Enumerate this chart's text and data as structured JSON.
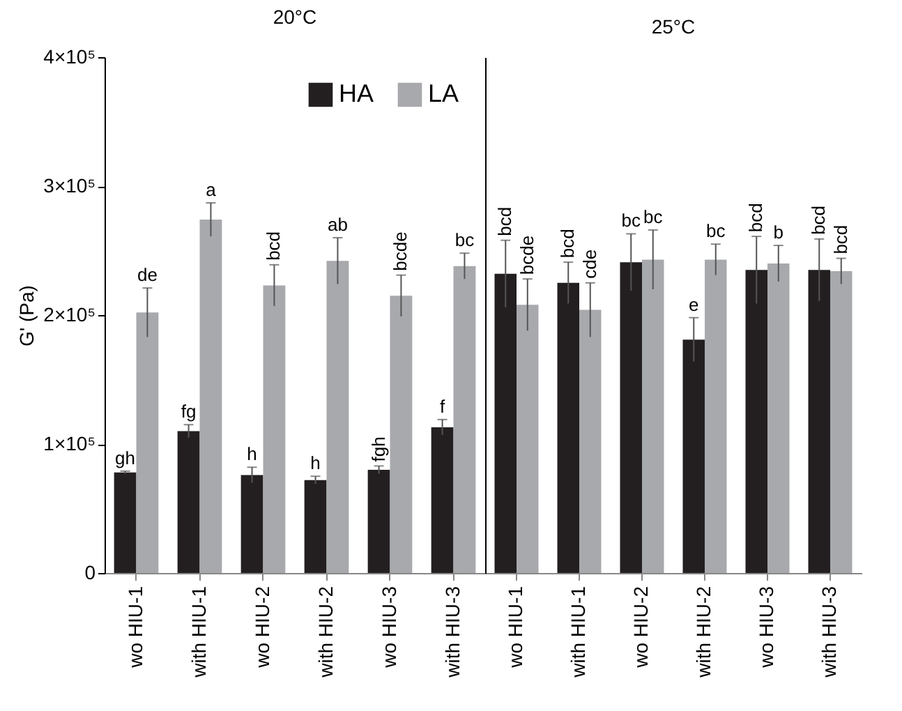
{
  "chart_data": [
    {
      "type": "bar",
      "title": "20°C",
      "ylabel": "G' (Pa)",
      "categories": [
        "wo HIU-1",
        "with HIU-1",
        "wo HIU-2",
        "with HIU-2",
        "wo HIU-3",
        "with HIU-3"
      ],
      "series": [
        {
          "name": "HA",
          "color": "#231f20",
          "values": [
            78000,
            110000,
            76000,
            72000,
            80000,
            113000
          ],
          "errors": [
            1000,
            5000,
            6000,
            3000,
            3000,
            6000
          ]
        },
        {
          "name": "LA",
          "color": "#a7a9ac",
          "values": [
            202000,
            274000,
            223000,
            242000,
            215000,
            238000
          ],
          "errors": [
            19000,
            13000,
            16000,
            18000,
            16000,
            10000
          ]
        }
      ],
      "ylim": [
        0,
        400000
      ],
      "yticks": [
        0,
        {
          "value": 100000,
          "label": "1×10⁵"
        },
        {
          "value": 200000,
          "label": "2×10⁵"
        },
        {
          "value": 300000,
          "label": "3×10⁵"
        },
        {
          "value": 400000,
          "label": "4×10⁵"
        }
      ],
      "legend": "top right",
      "annotations": [
        {
          "text": "gh",
          "x": "wo HIU-1",
          "y": 78000
        },
        {
          "text": "fg",
          "x": "with HIU-1",
          "y": 110000
        },
        {
          "text": "h",
          "x": "wo HIU-2",
          "y": 76000
        },
        {
          "text": "h",
          "x": "with HIU-2",
          "y": 72000
        },
        {
          "text": "fgh",
          "x": "wo HIU-3",
          "y": 80000
        },
        {
          "text": "f",
          "x": "with HIU-3",
          "y": 113000
        },
        {
          "text": "de",
          "x": "wo HIU-1",
          "y": 202000
        },
        {
          "text": "a",
          "x": "with HIU-1",
          "y": 274000
        },
        {
          "text": "bcd",
          "x": "wo HIU-2",
          "y": 223000
        },
        {
          "text": "ab",
          "x": "with HIU-2",
          "y": 242000
        },
        {
          "text": "bcde",
          "x": "wo HIU-3",
          "y": 215000
        },
        {
          "text": "bc",
          "x": "with HIU-3",
          "y": 238000
        }
      ]
    },
    {
      "type": "bar",
      "title": "25°C",
      "categories": [
        "wo HIU-1",
        "with HIU-1",
        "wo HIU-2",
        "with HIU-2",
        "wo HIU-3",
        "with HIU-3"
      ],
      "series": [
        {
          "color": "#231f20",
          "values": [
            232000,
            225000,
            241000,
            181000,
            235000,
            235000
          ],
          "errors": [
            26000,
            16000,
            22000,
            17000,
            26000,
            24000
          ]
        },
        {
          "color": "#a7a9ac",
          "values": [
            208000,
            204000,
            243000,
            243000,
            240000,
            234000
          ],
          "errors": [
            20000,
            21000,
            23000,
            12000,
            14000,
            10000
          ]
        }
      ],
      "ylim": [
        0,
        400000
      ],
      "tick_labels": "x",
      "annotations": [
        {
          "text": "bcd",
          "x": "wo HIU-1",
          "y": 232000
        },
        {
          "text": "bcd",
          "x": "with HIU-1",
          "y": 225000
        },
        {
          "text": "bc",
          "x": "wo HIU-2",
          "y": 241000
        },
        {
          "text": "e",
          "x": "with HIU-2",
          "y": 181000
        },
        {
          "text": "bcd",
          "x": "wo HIU-3",
          "y": 235000
        },
        {
          "text": "bcd",
          "x": "with HIU-3",
          "y": 235000
        },
        {
          "text": "bcde",
          "x": "wo HIU-1",
          "y": 208000
        },
        {
          "text": "cde",
          "x": "with HIU-1",
          "y": 204000
        },
        {
          "text": "bc",
          "x": "wo HIU-2",
          "y": 243000
        },
        {
          "text": "bc",
          "x": "with HIU-2",
          "y": 243000
        },
        {
          "text": "b",
          "x": "wo HIU-3",
          "y": 240000
        },
        {
          "text": "bcd",
          "x": "with HIU-3",
          "y": 234000
        }
      ]
    }
  ]
}
